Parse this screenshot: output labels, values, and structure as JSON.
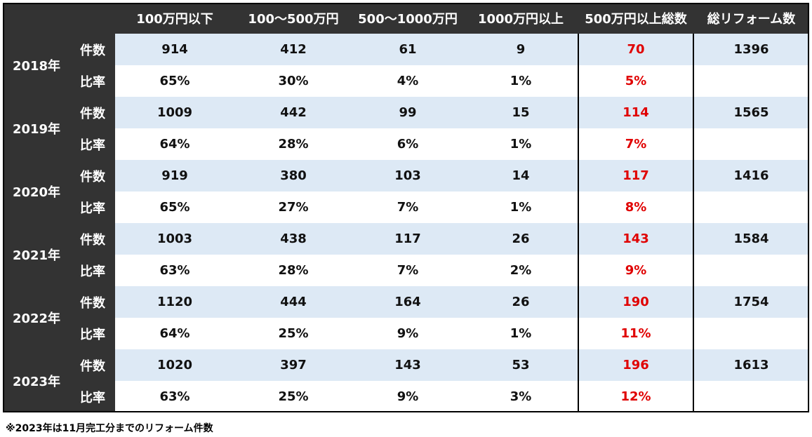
{
  "table": {
    "headers": [
      "100万円以下",
      "100〜500万円",
      "500〜1000万円",
      "1000万円以上",
      "500万円以上総数",
      "総リフォーム数"
    ],
    "labels": {
      "count": "件数",
      "ratio": "比率"
    },
    "years": [
      {
        "year": "2018年",
        "count": [
          914,
          412,
          61,
          9,
          70
        ],
        "ratio": [
          "65%",
          "30%",
          "4%",
          "1%",
          "5%"
        ],
        "total": 1396
      },
      {
        "year": "2019年",
        "count": [
          1009,
          442,
          99,
          15,
          114
        ],
        "ratio": [
          "64%",
          "28%",
          "6%",
          "1%",
          "7%"
        ],
        "total": 1565
      },
      {
        "year": "2020年",
        "count": [
          919,
          380,
          103,
          14,
          117
        ],
        "ratio": [
          "65%",
          "27%",
          "7%",
          "1%",
          "8%"
        ],
        "total": 1416
      },
      {
        "year": "2021年",
        "count": [
          1003,
          438,
          117,
          26,
          143
        ],
        "ratio": [
          "63%",
          "28%",
          "7%",
          "2%",
          "9%"
        ],
        "total": 1584
      },
      {
        "year": "2022年",
        "count": [
          1120,
          444,
          164,
          26,
          190
        ],
        "ratio": [
          "64%",
          "25%",
          "9%",
          "1%",
          "11%"
        ],
        "total": 1754
      },
      {
        "year": "2023年",
        "count": [
          1020,
          397,
          143,
          53,
          196
        ],
        "ratio": [
          "63%",
          "25%",
          "9%",
          "3%",
          "12%"
        ],
        "total": 1613
      }
    ]
  },
  "footnote": "※2023年は11月完工分までのリフォーム件数"
}
